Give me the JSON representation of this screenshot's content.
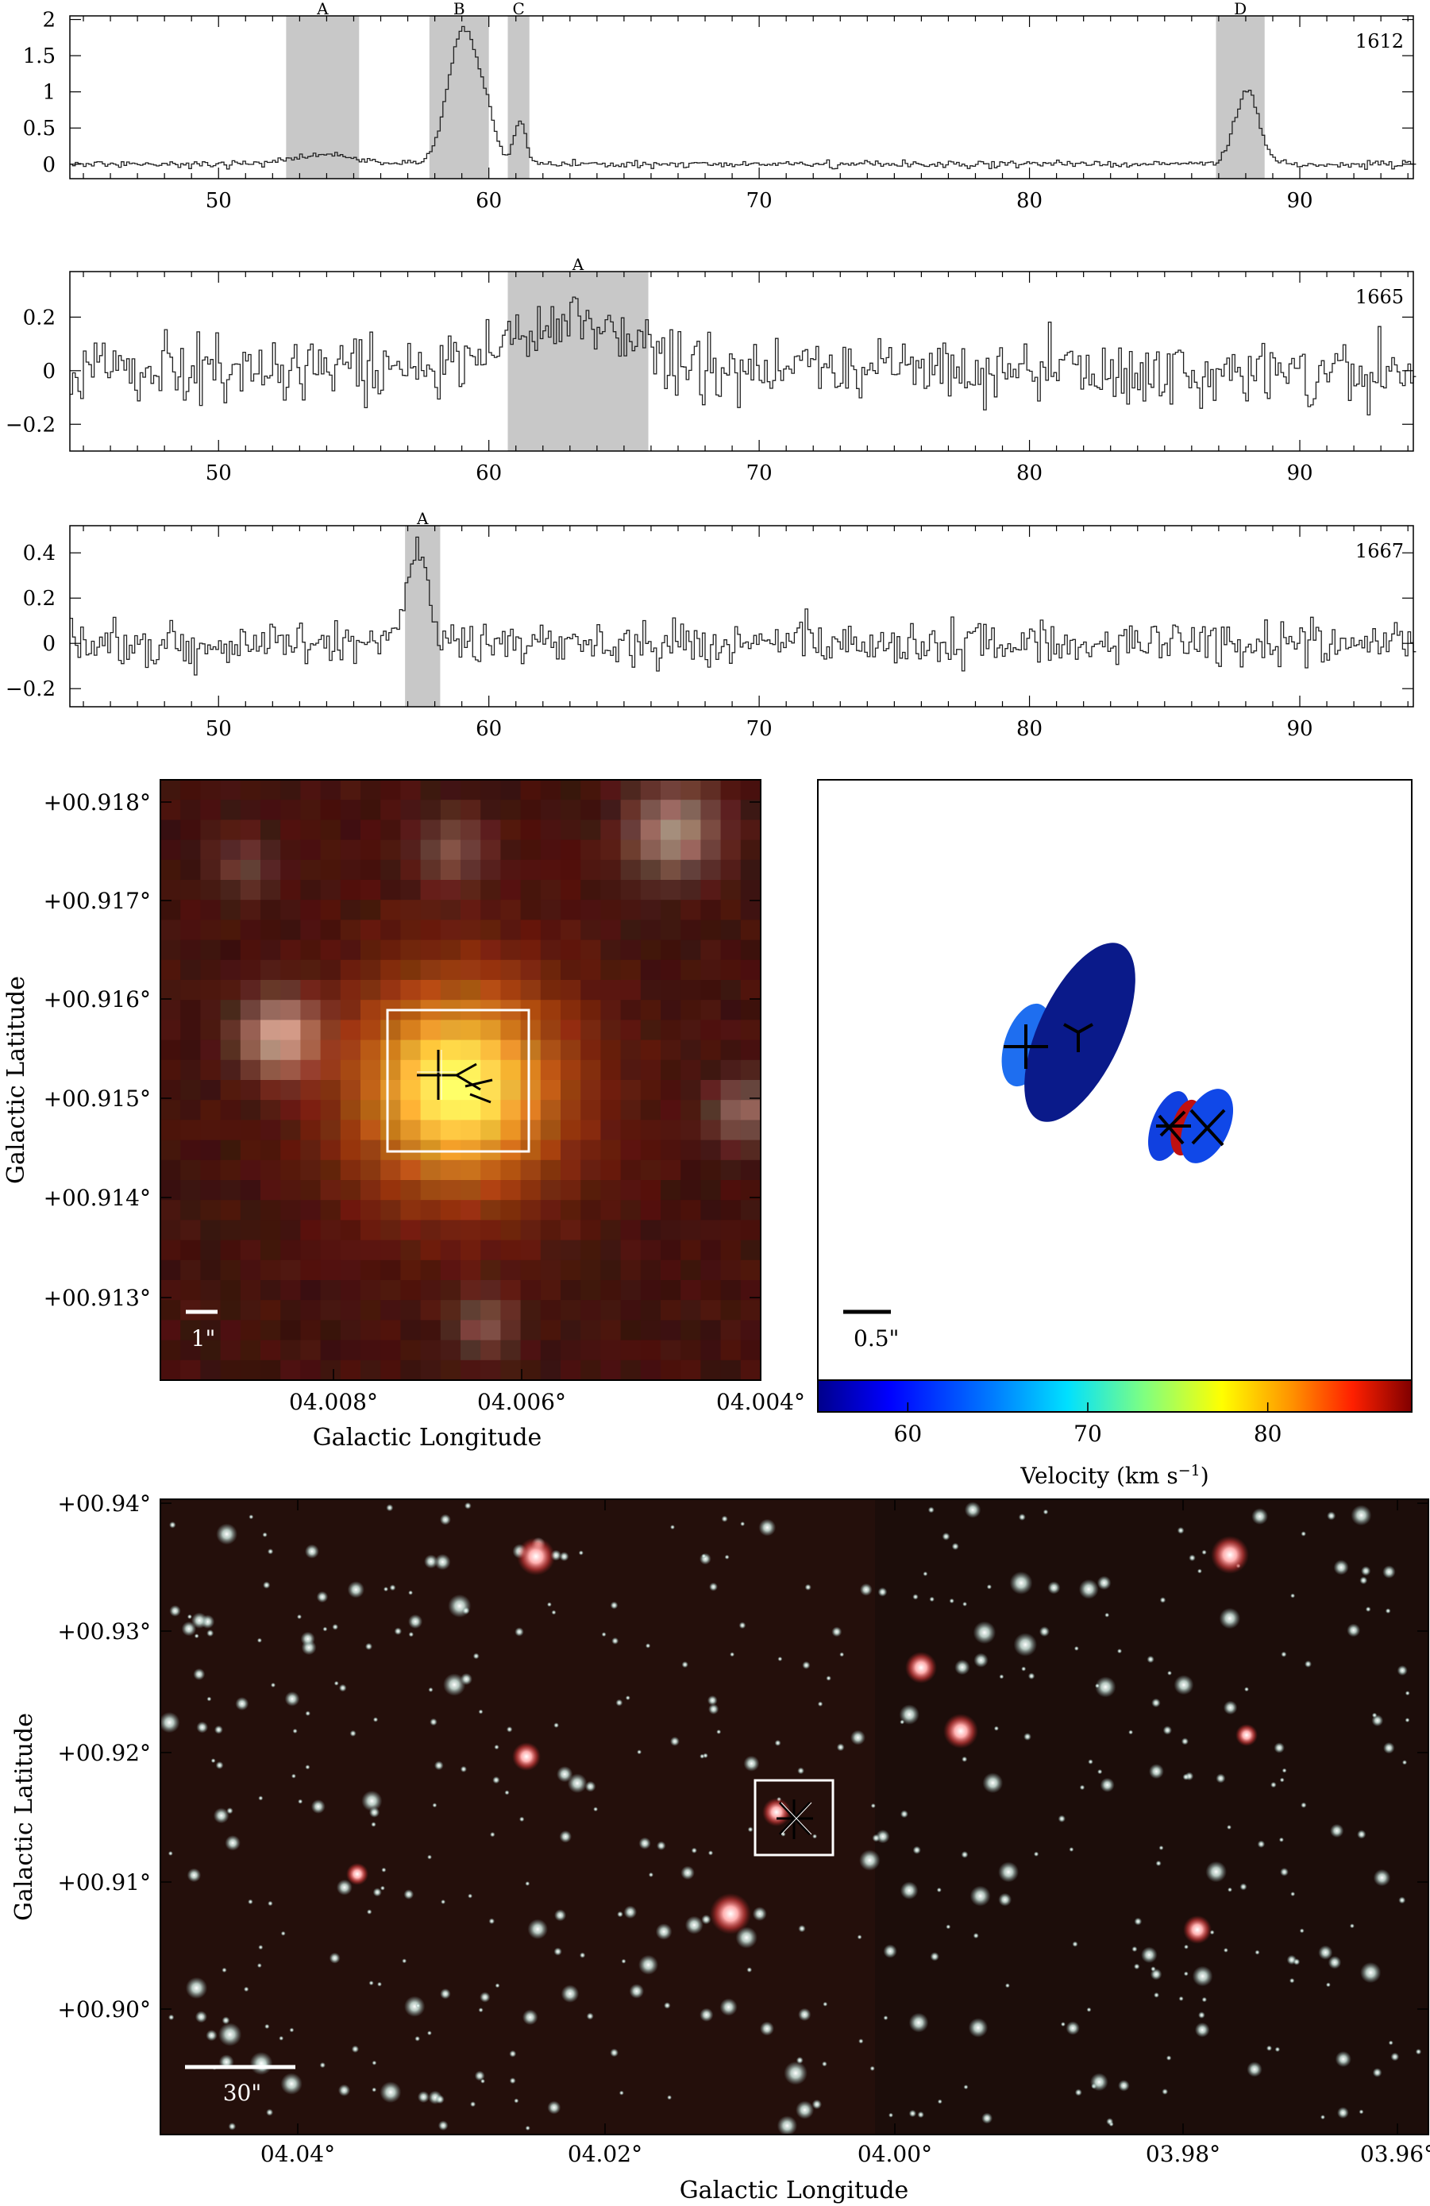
{
  "spectra": [
    {
      "label": "1612",
      "ylim": [
        -0.2,
        2.05
      ],
      "yticks": [
        0,
        0.5,
        1,
        1.5,
        2
      ],
      "ytick_labels": [
        "0",
        "0.5",
        "1",
        "1.5",
        "2"
      ],
      "noise": 0.035,
      "seed": 11,
      "peaks": [
        {
          "center": 53.8,
          "amp": 0.12,
          "width": 1.3
        },
        {
          "center": 59.0,
          "amp": 1.86,
          "width": 0.55
        },
        {
          "center": 59.9,
          "amp": 0.45,
          "width": 0.35
        },
        {
          "center": 61.1,
          "amp": 0.6,
          "width": 0.22
        },
        {
          "center": 88.0,
          "amp": 1.0,
          "width": 0.45
        }
      ],
      "bands": [
        {
          "name": "A",
          "from": 52.5,
          "to": 55.2
        },
        {
          "name": "B",
          "from": 57.8,
          "to": 60.0
        },
        {
          "name": "C",
          "from": 60.7,
          "to": 61.5
        },
        {
          "name": "D",
          "from": 86.9,
          "to": 88.7
        }
      ]
    },
    {
      "label": "1665",
      "ylim": [
        -0.3,
        0.37
      ],
      "yticks": [
        -0.2,
        0,
        0.2
      ],
      "ytick_labels": [
        "−0.2",
        "0",
        "0.2"
      ],
      "noise": 0.085,
      "seed": 27,
      "peaks": [
        {
          "center": 63.2,
          "amp": 0.17,
          "width": 2.3
        }
      ],
      "bands": [
        {
          "name": "A",
          "from": 60.7,
          "to": 65.9
        }
      ]
    },
    {
      "label": "1667",
      "ylim": [
        -0.28,
        0.52
      ],
      "yticks": [
        -0.2,
        0,
        0.2,
        0.4
      ],
      "ytick_labels": [
        "−0.2",
        "0",
        "0.2",
        "0.4"
      ],
      "noise": 0.07,
      "seed": 43,
      "peaks": [
        {
          "center": 57.3,
          "amp": 0.42,
          "width": 0.38
        }
      ],
      "bands": [
        {
          "name": "A",
          "from": 56.9,
          "to": 58.2
        }
      ]
    }
  ],
  "spectra_x": {
    "xlim": [
      44.5,
      94.2
    ],
    "xticks": [
      50,
      60,
      70,
      80,
      90
    ]
  },
  "zoom_image": {
    "ylabel": "Galactic Latitude",
    "xlabel": "Galactic Longitude",
    "yticks": [
      "+00.918°",
      "+00.917°",
      "+00.916°",
      "+00.915°",
      "+00.914°",
      "+00.913°"
    ],
    "xticks": [
      "04.008°",
      "04.006°",
      "04.004°"
    ],
    "scalebar": "1\""
  },
  "spot_map": {
    "scalebar": "0.5\"",
    "colorbar_label": "Velocity (km s",
    "colorbar_sup": "−1",
    "colorbar_close": ")",
    "colorbar_range": [
      55,
      88
    ],
    "colorbar_ticks": [
      "60",
      "70",
      "80"
    ]
  },
  "wide_image": {
    "ylabel": "Galactic Latitude",
    "xlabel": "Galactic Longitude",
    "yticks": [
      "+00.94°",
      "+00.93°",
      "+00.92°",
      "+00.91°",
      "+00.90°"
    ],
    "xticks": [
      "04.04°",
      "04.02°",
      "04.00°",
      "03.98°",
      "03.96°"
    ],
    "scalebar": "30\""
  },
  "chart_data": [
    {
      "type": "line",
      "title": "",
      "label": "1612",
      "xlim": [
        44.5,
        94.2
      ],
      "ylim": [
        -0.2,
        2.05
      ],
      "peaks": [
        {
          "x": 53.8,
          "y": 0.12
        },
        {
          "x": 59.0,
          "y": 1.9
        },
        {
          "x": 61.1,
          "y": 0.6
        },
        {
          "x": 88.0,
          "y": 1.05
        }
      ],
      "annotations": [
        "A",
        "B",
        "C",
        "D"
      ]
    },
    {
      "type": "line",
      "title": "",
      "label": "1665",
      "xlim": [
        44.5,
        94.2
      ],
      "ylim": [
        -0.3,
        0.37
      ],
      "peaks": [
        {
          "x": 63.2,
          "y": 0.3
        }
      ],
      "annotations": [
        "A"
      ]
    },
    {
      "type": "line",
      "title": "",
      "label": "1667",
      "xlim": [
        44.5,
        94.2
      ],
      "ylim": [
        -0.28,
        0.52
      ],
      "peaks": [
        {
          "x": 57.3,
          "y": 0.48
        }
      ],
      "annotations": [
        "A"
      ]
    }
  ]
}
